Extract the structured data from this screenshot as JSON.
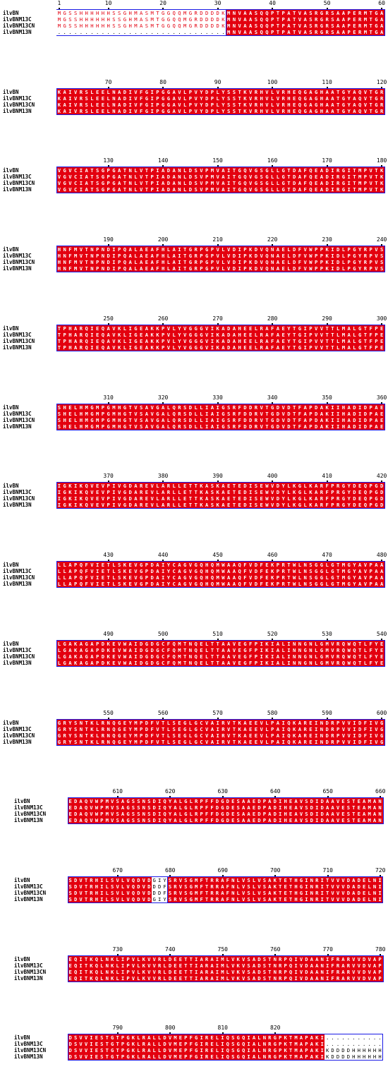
{
  "sequence_names": [
    "ilvBN",
    "ilvBNM13C",
    "ilvBNM13CN",
    "ilvBNM13N"
  ],
  "blocks": [
    {
      "ruler": [
        "1",
        "10",
        "20",
        "30",
        "40",
        "50",
        "60"
      ],
      "rows": [
        "MGSSHHHHHHSSGHMASMTGGQQMGRDDDDKMNVAASQQPTPATVASRGRSAAPERMTGA",
        "MGSSHHHHHHSSGHMASMTGGQQMGRDDDDKMNVAASQQPTPATVASRGRSAAPERMTGA",
        "MGSSHHHHHHSSGHMASMTGGQQMGRDDDDKMNVAASQQPTPATVASRGRSAAPERMTGA",
        "...............................MNVAASQQPTPATVASRGRSAAPERMTGA"
      ]
    },
    {
      "ruler": [
        "70",
        "80",
        "90",
        "100",
        "110",
        "120"
      ],
      "rows": [
        "KAIVRSLEELNADIVFGIPGGAVLPVYDPLYSSTKVRHVLVRHEQGAGHAATGYAQVTGR",
        "KAIVRSLEELNADIVFGIPGGAVLPVYDPLYSSTKVRHVLVRHEQGAGHAATGYAQVTGR",
        "KAIVRSLEELNADIVFGIPGGAVLPVYDPLYSSTKVRHVLVRHEQGAGHAATGYAQVTGR",
        "KAIVRSLEELNADIVFGIPGGAVLPVYDPLYSSTKVRHVLVRHEQGAGHAATGYAQVTGR"
      ]
    },
    {
      "ruler": [
        "130",
        "140",
        "150",
        "160",
        "170",
        "180"
      ],
      "rows": [
        "VGVCIATSGPGATNLVTPIADANLDSVPMVAITGQVGSGLLGTDAFQEADIRGITMPVTK",
        "VGVCIATSGPGATNLVTPIADANLDSVPMVAITGQVGSGLLGTDAFQEADIRGITMPVTK",
        "VGVCIATSGPGATNLVTPIADANLDSVPMVAITGQVGSGLLGTDAFQEADIRGITMPVTK",
        "VGVCIATSGPGATNLVTPIADANLDSVPMVAITGQVGSGLLGTDAFQEADIRGITMPVTK"
      ]
    },
    {
      "ruler": [
        "190",
        "200",
        "210",
        "220",
        "230",
        "240"
      ],
      "rows": [
        "HNFMVTNPNDIPQALAEAFHLAITGRPGPVLVDIPKDVQNAELDFVWPPKIDLPGYRPVS",
        "HNFMVTNPNDIPQALAEAFHLAITGRPGPVLVDIPKDVQNAELDFVWPPKIDLPGYRPVS",
        "HNFMVTNPNDIPQALAEAFHLAITGRPGPVLVDIPKDVQNAELDFVWPPKIDLPGYRPVS",
        "HNFMVTNPNDIPQALAEAFHLAITGRPGPVLVDIPKDVQNAELDFVWPPKIDLPGYRPVS"
      ]
    },
    {
      "ruler": [
        "250",
        "260",
        "270",
        "280",
        "290",
        "300"
      ],
      "rows": [
        "TPHARQIEQAVKLIGEAKKPVLYVGGGVIKADAHEELRAFAEYTGIPVVTTLMALGTFPE",
        "TPHARQIEQAVKLIGEAKKPVLYVGGGVIKADAHEELRAFAEYTGIPVVTTLMALGTFPE",
        "TPHARQIEQAVKLIGEAKKPVLYVGGGVIKADAHEELRAFAEYTGIPVVTTLMALGTFPE",
        "TPHARQIEQAVKLIGEAKKPVLYVGGGVIKADAHEELRAFAEYTGIPVVTTLMALGTFPE"
      ]
    },
    {
      "ruler": [
        "310",
        "320",
        "330",
        "340",
        "350",
        "360"
      ],
      "rows": [
        "SHELHMGMPGMHGTVSAVGALQRSDLLIAIGSRFDDRVTGDVDTFAPDAKIIHADIDPAE",
        "SHELHMGMPGMHGTVSAVGALQRSDLLIAIGSRFDDRVTGDVDTFAPDAKIIHADIDPAE",
        "SHELHMGMPGMHGTVSAVGALQRSDLLIAIGSRFDDRVTGDVDTFAPDAKIIHADIDPAE",
        "SHELHMGMPGMHGTVSAVGALQRSDLLIAIGSRFDDRVTGDVDTFAPDAKIIHADIDPAE"
      ]
    },
    {
      "ruler": [
        "370",
        "380",
        "390",
        "400",
        "410",
        "420"
      ],
      "rows": [
        "IGKIKQVEVPIVGDAREVLARLLETTKASKAETEDISEWVDYLKGLKARFPRGYDEQPGD",
        "IGKIKQVEVPIVGDAREVLARLLETTKASKAETEDISEWVDYLKGLKARFPRGYDEQPGD",
        "IGKIKQVEVPIVGDAREVLARLLETTKASKAETEDISEWVDYLKGLKARFPRGYDEQPGD",
        "IGKIKQVEVPIVGDAREVLARLLETTKASKAETEDISEWVDYLKGLKARFPRGYDEQPGD"
      ]
    },
    {
      "ruler": [
        "430",
        "440",
        "450",
        "460",
        "470",
        "480"
      ],
      "rows": [
        "LLAPQFVIETLSKEVGPDAIYCAGVGQHQMWAAQFVDFEKPRTWLNSGGLGTMGYAVPAA",
        "LLAPQFVIETLSKEVGPDAIYCAGVGQHQMWAAQFVDFEKPRTWLNSGGLGTMGYAVPAA",
        "LLAPQFVIETLSKEVGPDAIYCAGVGQHQMWAAQFVDFEKPRTWLNSGGLGTMGYAVPAA",
        "LLAPQFVIETLSKEVGPDAIYCAGVGQHQMWAAQFVDFEKPRTWLNSGGLGTMGYAVPAA"
      ]
    },
    {
      "ruler": [
        "490",
        "500",
        "510",
        "520",
        "530",
        "540"
      ],
      "rows": [
        "LGAKAGAPDKEVWAIDGDGCFQMTNQELTTAAVEGFPIKIALINNGNLGMVRQWQTLFYE",
        "LGAKAGAPDKEVWAIDGDGCFQMTNQELTTAAVEGFPIKIALINNGNLGMVRQWQTLFYE",
        "LGAKAGAPDKEVWAIDGDGCFQMTNQELTTAAVEGFPIKIALINNGNLGMVRQWQTLFYE",
        "LGAKAGAPDKEVWAIDGDGCFQMTNQELTTAAVEGFPIKIALINNGNLGMVRQWQTLFYE"
      ]
    },
    {
      "ruler": [
        "550",
        "560",
        "570",
        "580",
        "590",
        "600"
      ],
      "rows": [
        "GRYSNTKLRNQGEYMPDFVTLSEGLGCVAIRVTKAEEVLPAIQKAREINDRPVVIDFIVG",
        "GRYSNTKLRNQGEYMPDFVTLSEGLGCVAIRVTKAEEVLPAIQKAREINDRPVVIDFIVG",
        "GRYSNTKLRNQGEYMPDFVTLSEGLGCVAIRVTKAEEVLPAIQKAREINDRPVVIDFIVG",
        "GRYSNTKLRNQGEYMPDFVTLSEGLGCVAIRVTKAEEVLPAIQKAREINDRPVVIDFIVG"
      ]
    },
    {
      "ruler": [
        "610",
        "620",
        "630",
        "640",
        "650",
        "660"
      ],
      "rows": [
        "EDAQVWPMVSAGSSNSDIQYALGLRPFFDGDESAAEDPADIHEAVSDIDAAVESTEAMAN",
        "EDAQVWPMVSAGSSNSDIQYALGLRPFFDGDESAAEDPADIHEAVSDIDAAVESTEAMAN",
        "EDAQVWPMVSAGSSNSDIQYALGLRPFFDGDESAAEDPADIHEAVSDIDAAVESTEAMAN",
        "EDAQVWPMVSAGSSNSDIQYALGLRPFFDGDESAAEDPADIHEAVSDIDAAVESTEAMAN"
      ]
    },
    {
      "ruler": [
        "670",
        "680",
        "690",
        "700",
        "710",
        "720"
      ],
      "rows": [
        "SDVTRHILSVLVQDVDGIYSRVSGMFTRRAFNLVSLVSAKTETHGINRITVVVDADELNI",
        "SDVTRHILSVLVQDVDDDFSRVSGMFTRRAFNLVSLVSAKTETHGINRITVVVDADELNI",
        "SDVTRHILSVLVQDVDDDFSRVSGMFTRRAFNLVSLVSAKTETHGINRITVVVDADELNI",
        "SDVTRHILSVLVQDVDGIYSRVSGMFTRRAFNLVSLVSAKTETHGINRITVVVDADELNI"
      ]
    },
    {
      "ruler": [
        "730",
        "740",
        "750",
        "760",
        "770",
        "780"
      ],
      "rows": [
        "EQITKQLNKLIPVLKVVRLDEETTIARAIMLVKVSADSTNRPQIVDAANIFRARVVDVAP",
        "EQITKQLNKLIPVLKVVRLDEETTIARAIMLVKVSADSTNRPQIVDAANIFRARVVDVAP",
        "EQITKQLNKLIPVLKVVRLDEETTIARAIMLVKVSADSTNRPQIVDAANIFRARVVDVAP",
        "EQITKQLNKLIPVLKVVRLDEETTIARAIMLVKVSADSTNRPQIVDAANIFRARVVDVAP"
      ]
    },
    {
      "ruler": [
        "790",
        "800",
        "810",
        "820"
      ],
      "rows": [
        "DSVVIESTGTPGKLRALLDVMEPFGIRELIQSGQIALNRGPKTMAPAKI...........",
        "DSVVIESTGTPGKLRALLDVMEPFGIRELIQSGQIALNRGPKTMAPAKI...........",
        "DSVVIESTGTPGKLRALLDVMEPFGIRELIQSGQIALNRGPKTMAPAKIKDDDDHHHHHH",
        "DSVVIESTGTPGKLRALLDVMEPFGIRELIQSGQIALNRGPKTMAPAKIKDDDDHHHHHH"
      ]
    }
  ]
}
